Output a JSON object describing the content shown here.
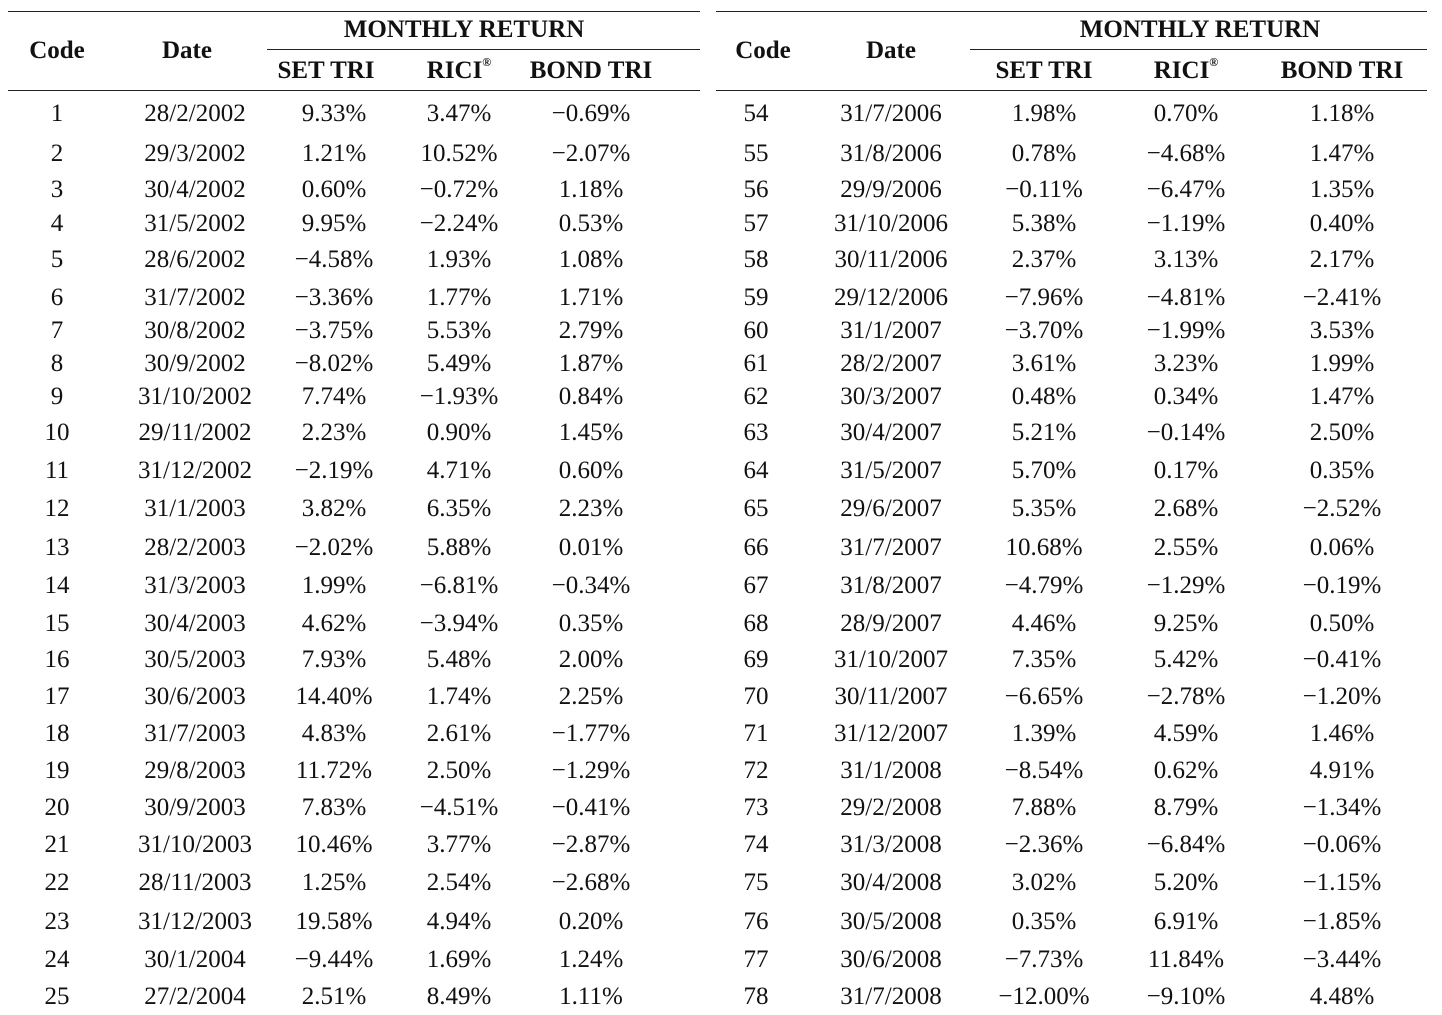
{
  "headers": {
    "code": "Code",
    "date": "Date",
    "monthly_return": "MONTHLY RETURN",
    "set_tri": "SET TRI",
    "rici": "RICI",
    "rici_mark": "®",
    "bond_tri": "BOND TRI"
  },
  "left_rows": [
    {
      "code": "1",
      "date": "28/2/2002",
      "set": "9.33%",
      "rici": "3.47%",
      "bond": "−0.69%"
    },
    {
      "code": "2",
      "date": "29/3/2002",
      "set": "1.21%",
      "rici": "10.52%",
      "bond": "−2.07%"
    },
    {
      "code": "3",
      "date": "30/4/2002",
      "set": "0.60%",
      "rici": "−0.72%",
      "bond": "1.18%"
    },
    {
      "code": "4",
      "date": "31/5/2002",
      "set": "9.95%",
      "rici": "−2.24%",
      "bond": "0.53%"
    },
    {
      "code": "5",
      "date": "28/6/2002",
      "set": "−4.58%",
      "rici": "1.93%",
      "bond": "1.08%"
    },
    {
      "code": "6",
      "date": "31/7/2002",
      "set": "−3.36%",
      "rici": "1.77%",
      "bond": "1.71%"
    },
    {
      "code": "7",
      "date": "30/8/2002",
      "set": "−3.75%",
      "rici": "5.53%",
      "bond": "2.79%"
    },
    {
      "code": "8",
      "date": "30/9/2002",
      "set": "−8.02%",
      "rici": "5.49%",
      "bond": "1.87%"
    },
    {
      "code": "9",
      "date": "31/10/2002",
      "set": "7.74%",
      "rici": "−1.93%",
      "bond": "0.84%"
    },
    {
      "code": "10",
      "date": "29/11/2002",
      "set": "2.23%",
      "rici": "0.90%",
      "bond": "1.45%"
    },
    {
      "code": "11",
      "date": "31/12/2002",
      "set": "−2.19%",
      "rici": "4.71%",
      "bond": "0.60%"
    },
    {
      "code": "12",
      "date": "31/1/2003",
      "set": "3.82%",
      "rici": "6.35%",
      "bond": "2.23%"
    },
    {
      "code": "13",
      "date": "28/2/2003",
      "set": "−2.02%",
      "rici": "5.88%",
      "bond": "0.01%"
    },
    {
      "code": "14",
      "date": "31/3/2003",
      "set": "1.99%",
      "rici": "−6.81%",
      "bond": "−0.34%"
    },
    {
      "code": "15",
      "date": "30/4/2003",
      "set": "4.62%",
      "rici": "−3.94%",
      "bond": "0.35%"
    },
    {
      "code": "16",
      "date": "30/5/2003",
      "set": "7.93%",
      "rici": "5.48%",
      "bond": "2.00%"
    },
    {
      "code": "17",
      "date": "30/6/2003",
      "set": "14.40%",
      "rici": "1.74%",
      "bond": "2.25%"
    },
    {
      "code": "18",
      "date": "31/7/2003",
      "set": "4.83%",
      "rici": "2.61%",
      "bond": "−1.77%"
    },
    {
      "code": "19",
      "date": "29/8/2003",
      "set": "11.72%",
      "rici": "2.50%",
      "bond": "−1.29%"
    },
    {
      "code": "20",
      "date": "30/9/2003",
      "set": "7.83%",
      "rici": "−4.51%",
      "bond": "−0.41%"
    },
    {
      "code": "21",
      "date": "31/10/2003",
      "set": "10.46%",
      "rici": "3.77%",
      "bond": "−2.87%"
    },
    {
      "code": "22",
      "date": "28/11/2003",
      "set": "1.25%",
      "rici": "2.54%",
      "bond": "−2.68%"
    },
    {
      "code": "23",
      "date": "31/12/2003",
      "set": "19.58%",
      "rici": "4.94%",
      "bond": "0.20%"
    },
    {
      "code": "24",
      "date": "30/1/2004",
      "set": "−9.44%",
      "rici": "1.69%",
      "bond": "1.24%"
    },
    {
      "code": "25",
      "date": "27/2/2004",
      "set": "2.51%",
      "rici": "8.49%",
      "bond": "1.11%"
    }
  ],
  "right_rows": [
    {
      "code": "54",
      "date": "31/7/2006",
      "set": "1.98%",
      "rici": "0.70%",
      "bond": "1.18%"
    },
    {
      "code": "55",
      "date": "31/8/2006",
      "set": "0.78%",
      "rici": "−4.68%",
      "bond": "1.47%"
    },
    {
      "code": "56",
      "date": "29/9/2006",
      "set": "−0.11%",
      "rici": "−6.47%",
      "bond": "1.35%"
    },
    {
      "code": "57",
      "date": "31/10/2006",
      "set": "5.38%",
      "rici": "−1.19%",
      "bond": "0.40%"
    },
    {
      "code": "58",
      "date": "30/11/2006",
      "set": "2.37%",
      "rici": "3.13%",
      "bond": "2.17%"
    },
    {
      "code": "59",
      "date": "29/12/2006",
      "set": "−7.96%",
      "rici": "−4.81%",
      "bond": "−2.41%"
    },
    {
      "code": "60",
      "date": "31/1/2007",
      "set": "−3.70%",
      "rici": "−1.99%",
      "bond": "3.53%"
    },
    {
      "code": "61",
      "date": "28/2/2007",
      "set": "3.61%",
      "rici": "3.23%",
      "bond": "1.99%"
    },
    {
      "code": "62",
      "date": "30/3/2007",
      "set": "0.48%",
      "rici": "0.34%",
      "bond": "1.47%"
    },
    {
      "code": "63",
      "date": "30/4/2007",
      "set": "5.21%",
      "rici": "−0.14%",
      "bond": "2.50%"
    },
    {
      "code": "64",
      "date": "31/5/2007",
      "set": "5.70%",
      "rici": "0.17%",
      "bond": "0.35%"
    },
    {
      "code": "65",
      "date": "29/6/2007",
      "set": "5.35%",
      "rici": "2.68%",
      "bond": "−2.52%"
    },
    {
      "code": "66",
      "date": "31/7/2007",
      "set": "10.68%",
      "rici": "2.55%",
      "bond": "0.06%"
    },
    {
      "code": "67",
      "date": "31/8/2007",
      "set": "−4.79%",
      "rici": "−1.29%",
      "bond": "−0.19%"
    },
    {
      "code": "68",
      "date": "28/9/2007",
      "set": "4.46%",
      "rici": "9.25%",
      "bond": "0.50%"
    },
    {
      "code": "69",
      "date": "31/10/2007",
      "set": "7.35%",
      "rici": "5.42%",
      "bond": "−0.41%"
    },
    {
      "code": "70",
      "date": "30/11/2007",
      "set": "−6.65%",
      "rici": "−2.78%",
      "bond": "−1.20%"
    },
    {
      "code": "71",
      "date": "31/12/2007",
      "set": "1.39%",
      "rici": "4.59%",
      "bond": "1.46%"
    },
    {
      "code": "72",
      "date": "31/1/2008",
      "set": "−8.54%",
      "rici": "0.62%",
      "bond": "4.91%"
    },
    {
      "code": "73",
      "date": "29/2/2008",
      "set": "7.88%",
      "rici": "8.79%",
      "bond": "−1.34%"
    },
    {
      "code": "74",
      "date": "31/3/2008",
      "set": "−2.36%",
      "rici": "−6.84%",
      "bond": "−0.06%"
    },
    {
      "code": "75",
      "date": "30/4/2008",
      "set": "3.02%",
      "rici": "5.20%",
      "bond": "−1.15%"
    },
    {
      "code": "76",
      "date": "30/5/2008",
      "set": "0.35%",
      "rici": "6.91%",
      "bond": "−1.85%"
    },
    {
      "code": "77",
      "date": "30/6/2008",
      "set": "−7.73%",
      "rici": "11.84%",
      "bond": "−3.44%"
    },
    {
      "code": "78",
      "date": "31/7/2008",
      "set": "−12.00%",
      "rici": "−9.10%",
      "bond": "4.48%"
    }
  ]
}
